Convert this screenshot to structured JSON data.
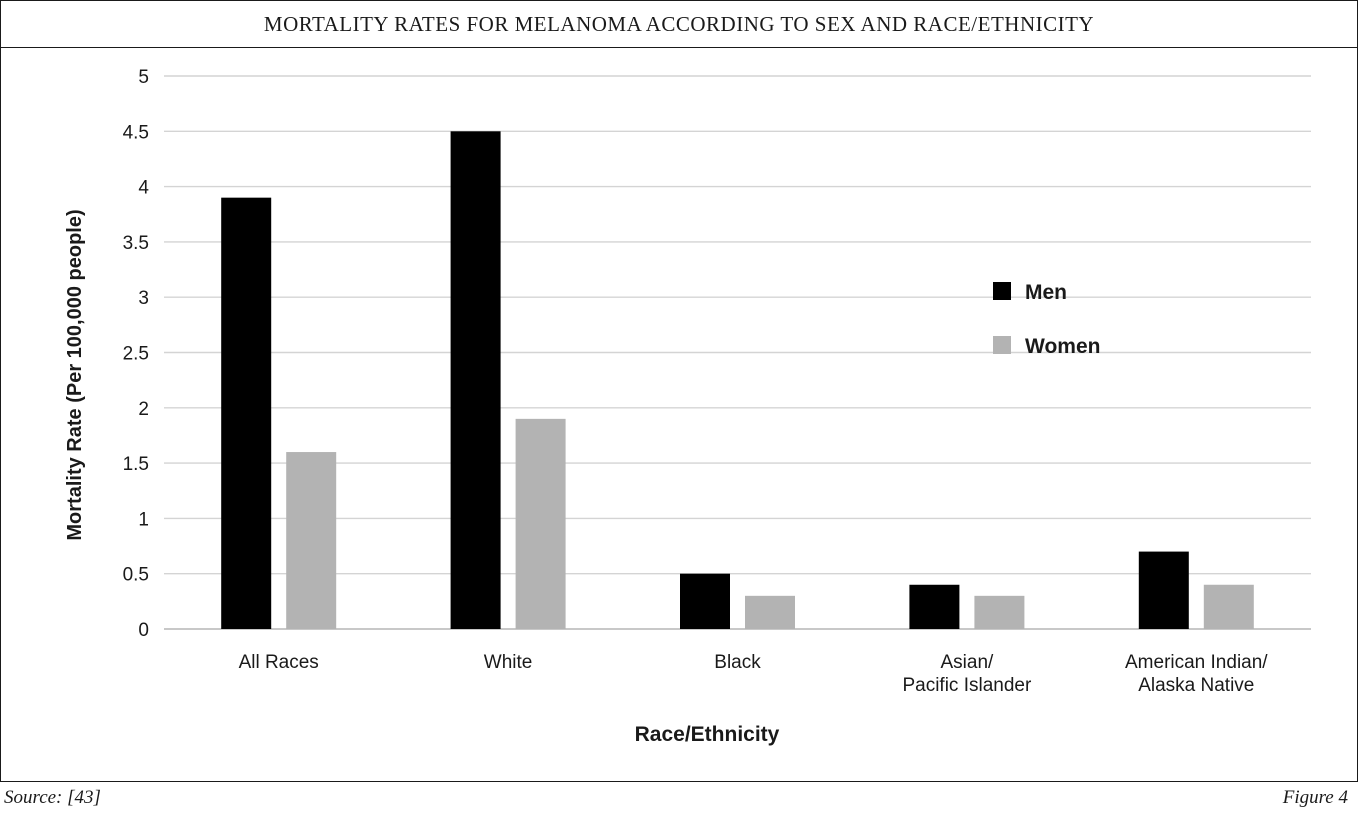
{
  "header": {
    "title": "MORTALITY RATES FOR MELANOMA ACCORDING TO SEX AND RACE/ETHNICITY"
  },
  "footer": {
    "source": "Source: [43]",
    "figure": "Figure 4"
  },
  "chart_data": {
    "type": "bar",
    "title": "MORTALITY RATES FOR MELANOMA ACCORDING TO SEX AND RACE/ETHNICITY",
    "xlabel": "Race/Ethnicity",
    "ylabel": "Mortality Rate (Per 100,000 people)",
    "ylim": [
      0,
      5
    ],
    "yticks": [
      "0",
      "0.5",
      "1",
      "1.5",
      "2",
      "2.5",
      "3",
      "3.5",
      "4",
      "4.5",
      "5"
    ],
    "categories": [
      [
        "All Races"
      ],
      [
        "White"
      ],
      [
        "Black"
      ],
      [
        "Asian/",
        "Pacific Islander"
      ],
      [
        "American Indian/",
        "Alaska Native"
      ]
    ],
    "series": [
      {
        "name": "Men",
        "color": "#000000",
        "values": [
          3.9,
          4.5,
          0.5,
          0.4,
          0.7
        ]
      },
      {
        "name": "Women",
        "color": "#b3b3b3",
        "values": [
          1.6,
          1.9,
          0.3,
          0.3,
          0.4
        ]
      }
    ],
    "grid": true,
    "legend": "right"
  }
}
